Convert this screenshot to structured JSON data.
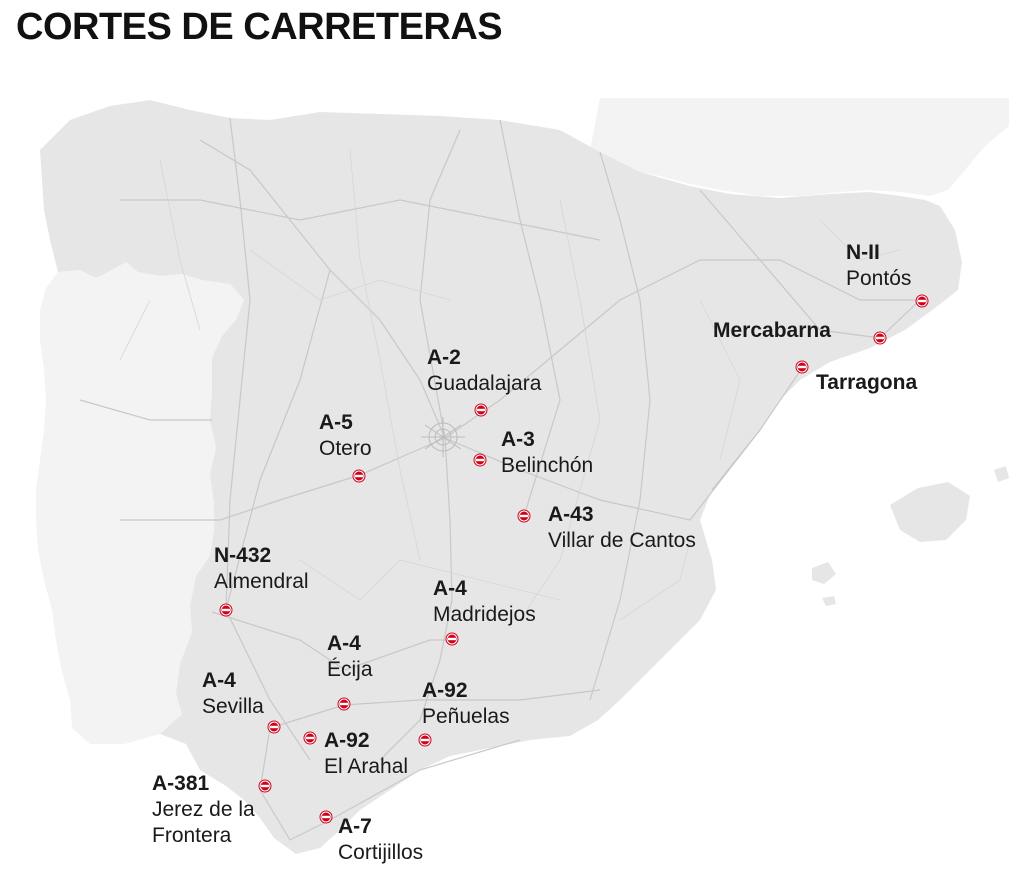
{
  "title": "CORTES DE CARRETERAS",
  "colors": {
    "land": "#e6e6e6",
    "neighbor": "#f3f3f3",
    "roads": "#c9c9c9",
    "marker": "#d0021b"
  },
  "icon": "road-closed-icon",
  "closures": [
    {
      "id": "n-ii-pontos",
      "road": "N-II",
      "place": "Pontós"
    },
    {
      "id": "mercabarna",
      "road": "",
      "place": "Mercabarna"
    },
    {
      "id": "tarragona",
      "road": "",
      "place": "Tarragona"
    },
    {
      "id": "a-2-guadalajara",
      "road": "A-2",
      "place": "Guadalajara"
    },
    {
      "id": "a-5-otero",
      "road": "A-5",
      "place": "Otero"
    },
    {
      "id": "a-3-belinchon",
      "road": "A-3",
      "place": "Belinchón"
    },
    {
      "id": "a-43-villar",
      "road": "A-43",
      "place": "Villar de Cantos"
    },
    {
      "id": "n-432-almendral",
      "road": "N-432",
      "place": "Almendral"
    },
    {
      "id": "a-4-madridejos",
      "road": "A-4",
      "place": "Madridejos"
    },
    {
      "id": "a-4-ecija",
      "road": "A-4",
      "place": "Écija"
    },
    {
      "id": "a-4-sevilla",
      "road": "A-4",
      "place": "Sevilla"
    },
    {
      "id": "a-92-penuelas",
      "road": "A-92",
      "place": "Peñuelas"
    },
    {
      "id": "a-92-arahal",
      "road": "A-92",
      "place": "El Arahal"
    },
    {
      "id": "a-381-jerez",
      "road": "A-381",
      "place": "Jerez de la Frontera"
    },
    {
      "id": "a-7-cortijillos",
      "road": "A-7",
      "place": "Cortijillos"
    }
  ]
}
